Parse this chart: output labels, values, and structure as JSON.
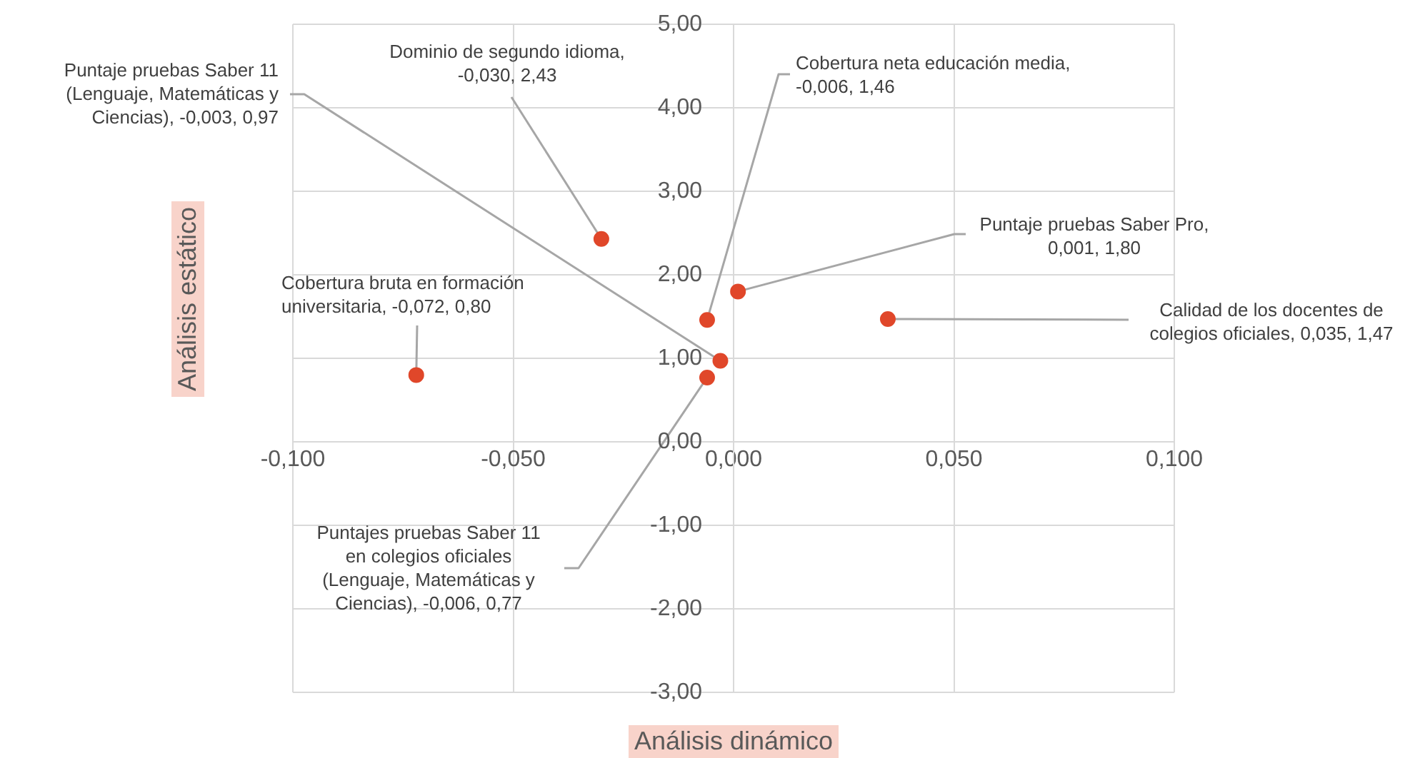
{
  "chart_data": {
    "type": "scatter",
    "xlabel": "Análisis dinámico",
    "ylabel": "Análisis estático",
    "series": [
      {
        "color": "#e0472a",
        "x": [
          -0.03,
          -0.006,
          -0.003,
          0.001,
          0.035,
          -0.072,
          -0.006
        ],
        "values": [
          2.43,
          1.46,
          0.97,
          1.8,
          1.47,
          0.8,
          0.77
        ]
      }
    ],
    "xlim": [
      -0.1,
      0.1
    ],
    "ylim": [
      -3,
      5
    ],
    "xticks": [
      {
        "value": -0.1,
        "label": "-0,100"
      },
      {
        "value": -0.05,
        "label": "-0,050"
      },
      {
        "value": 0,
        "label": "0,000"
      },
      {
        "value": 0.05,
        "label": "0,050"
      },
      {
        "value": 0.1,
        "label": "0,100"
      }
    ],
    "yticks": [
      {
        "value": -3,
        "label": "-3,00"
      },
      {
        "value": -2,
        "label": "-2,00"
      },
      {
        "value": -1,
        "label": "-1,00"
      },
      {
        "value": 0,
        "label": "0,00"
      },
      {
        "value": 1,
        "label": "1,00"
      },
      {
        "value": 2,
        "label": "2,00"
      },
      {
        "value": 3,
        "label": "3,00"
      },
      {
        "value": 4,
        "label": "4,00"
      },
      {
        "value": 5,
        "label": "5,00"
      }
    ],
    "grid": true,
    "marker": "circle",
    "annotations": [
      {
        "text": "Dominio de segundo idioma, -0,030, 2,43",
        "x": -0.03,
        "y": 2.43
      },
      {
        "text": "Cobertura neta educación media, -0,006, 1,46",
        "x": -0.006,
        "y": 1.46
      },
      {
        "text": "Puntaje pruebas Saber 11 (Lenguaje, Matemáticas y Ciencias), -0,003, 0,97",
        "x": -0.003,
        "y": 0.97
      },
      {
        "text": "Puntaje pruebas Saber Pro, 0,001, 1,80",
        "x": 0.001,
        "y": 1.8
      },
      {
        "text": "Calidad de los docentes de colegios oficiales, 0,035, 1,47",
        "x": 0.035,
        "y": 1.47
      },
      {
        "text": "Cobertura bruta en formación universitaria, -0,072, 0,80",
        "x": -0.072,
        "y": 0.8
      },
      {
        "text": "Puntajes pruebas Saber 11 en colegios oficiales (Lenguaje, Matemáticas y Ciencias), -0,006, 0,77",
        "x": -0.006,
        "y": 0.77
      }
    ]
  }
}
